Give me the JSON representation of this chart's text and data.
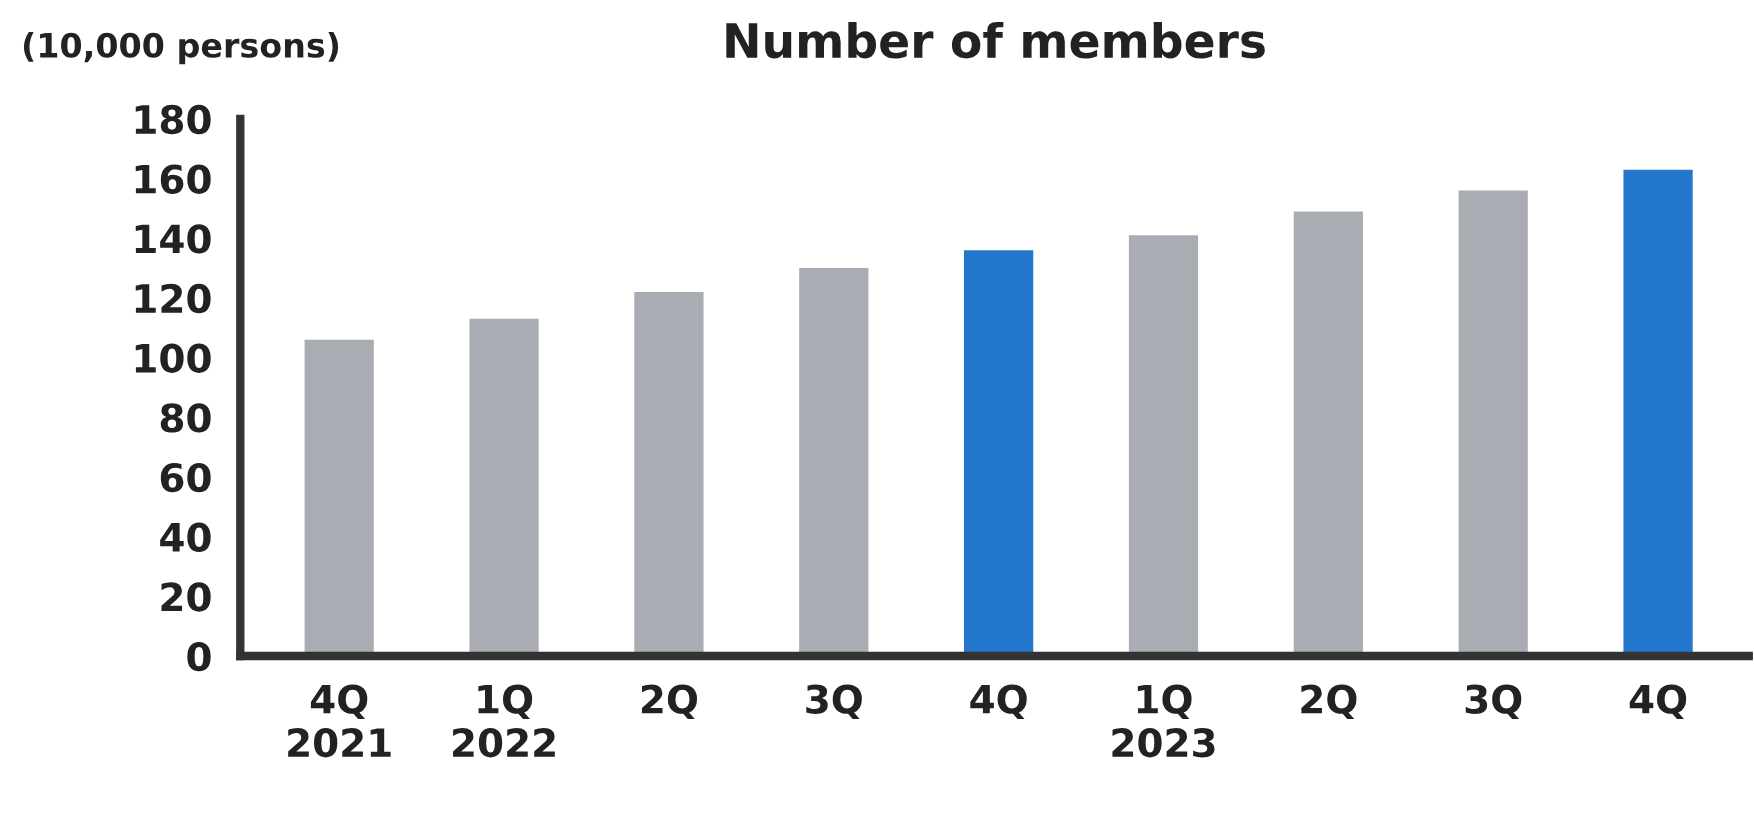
{
  "chart_data": {
    "type": "bar",
    "title": "Number of members",
    "ylabel": "(10,000 persons)",
    "categories": [
      "4Q\n2021",
      "1Q\n2022",
      "2Q",
      "3Q",
      "4Q",
      "1Q\n2023",
      "2Q",
      "3Q",
      "4Q"
    ],
    "values": [
      106,
      113,
      122,
      130,
      136,
      141,
      149,
      156,
      163
    ],
    "colors": [
      "#a9acb3",
      "#a9acb3",
      "#a9acb3",
      "#a9acb3",
      "#2277cc",
      "#a9acb3",
      "#a9acb3",
      "#a9acb3",
      "#2277cc"
    ],
    "ylim": [
      0,
      180
    ],
    "yticks": [
      0,
      20,
      40,
      60,
      80,
      100,
      120,
      140,
      160,
      180
    ],
    "grid": false,
    "legend": false
  }
}
